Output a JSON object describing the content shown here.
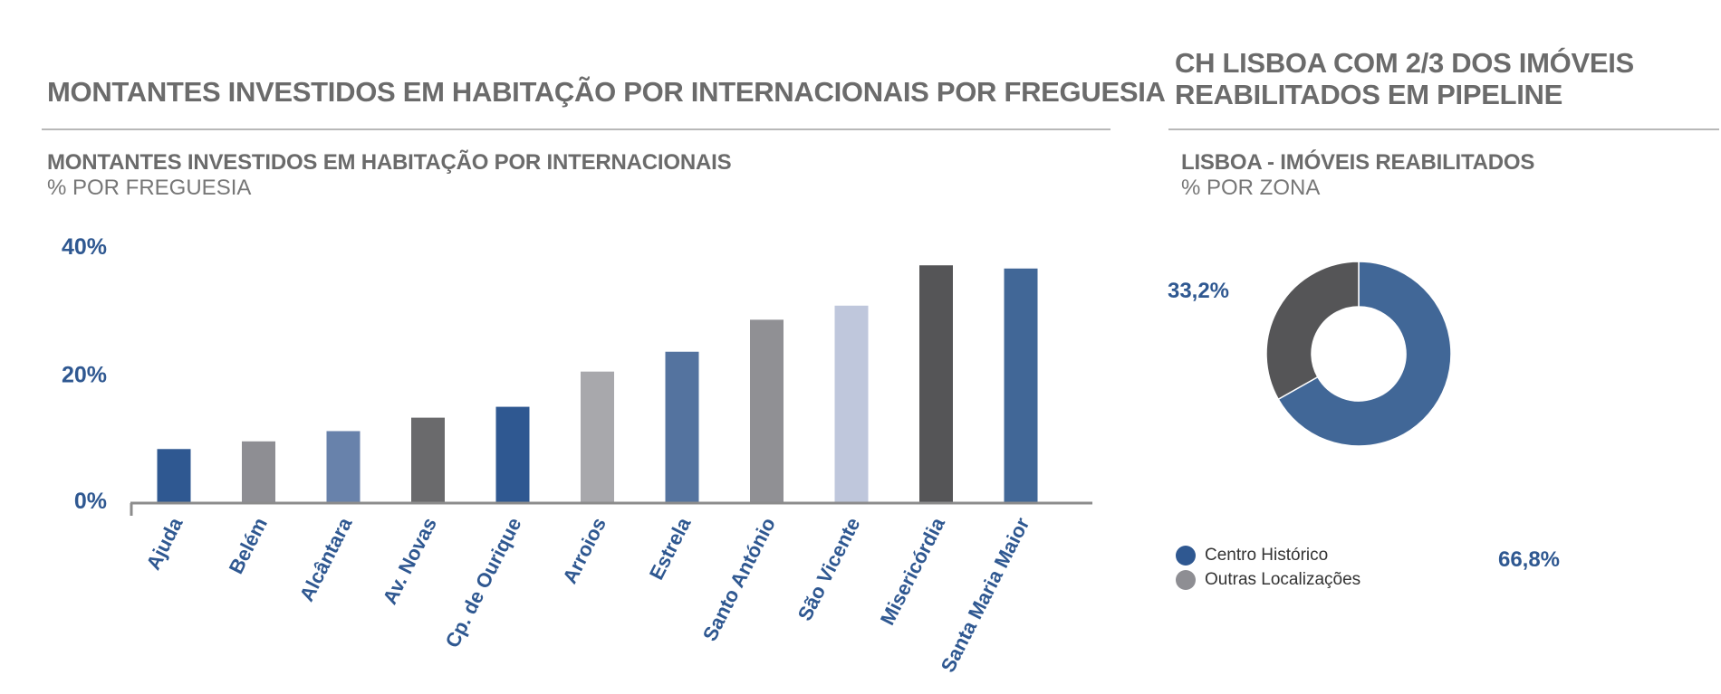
{
  "left": {
    "main_title": "MONTANTES INVESTIDOS EM HABITAÇÃO POR INTERNACIONAIS POR FREGUESIA",
    "chart_title": "MONTANTES INVESTIDOS EM HABITAÇÃO POR INTERNACIONAIS",
    "chart_subtitle": "% POR FREGUESIA"
  },
  "right": {
    "main_title": "CH LISBOA COM 2/3 DOS IMÓVEIS REABILITADOS EM PIPELINE",
    "chart_title": "LISBOA - IMÓVEIS REABILITADOS",
    "chart_subtitle": "% POR ZONA"
  },
  "colors": {
    "label_blue": "#2f5891",
    "axis": "#8c8c8c"
  },
  "chart_data": [
    {
      "type": "bar",
      "title": "MONTANTES INVESTIDOS EM HABITAÇÃO POR INTERNACIONAIS",
      "subtitle": "% POR FREGUESIA",
      "categories": [
        "Ajuda",
        "Belém",
        "Alcântara",
        "Av. Novas",
        "Cp. de Ourique",
        "Arroios",
        "Estrela",
        "Santo António",
        "São Vicente",
        "Misericórdia",
        "Santa Maria Maior"
      ],
      "values": [
        8.3,
        9.5,
        11.1,
        13.2,
        14.9,
        20.4,
        23.5,
        28.5,
        30.7,
        37.0,
        36.5
      ],
      "colors": [
        "#2f5891",
        "#8e8e93",
        "#6882ab",
        "#6a6a6c",
        "#2f5891",
        "#a8a8ac",
        "#54739f",
        "#909094",
        "#bfc7dc",
        "#555557",
        "#416797"
      ],
      "yticks": [
        "0%",
        "20%",
        "40%"
      ],
      "ytick_values": [
        0,
        20,
        40
      ],
      "ylim": [
        0,
        40
      ],
      "xlabel": "",
      "ylabel": ""
    },
    {
      "type": "pie",
      "title": "LISBOA - IMÓVEIS REABILITADOS",
      "subtitle": "% POR ZONA",
      "donut": true,
      "slices": [
        {
          "name": "Centro Histórico",
          "value": 66.8,
          "label": "66,8%",
          "color": "#416797"
        },
        {
          "name": "Outras Localizações",
          "value": 33.2,
          "label": "33,2%",
          "color": "#555557"
        }
      ],
      "legend": [
        {
          "label": "Centro Histórico",
          "color": "#2f5891"
        },
        {
          "label": "Outras Localizações",
          "color": "#8e8e93"
        }
      ]
    }
  ]
}
